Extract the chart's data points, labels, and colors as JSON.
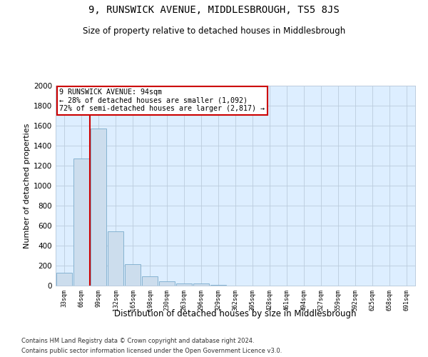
{
  "title": "9, RUNSWICK AVENUE, MIDDLESBROUGH, TS5 8JS",
  "subtitle": "Size of property relative to detached houses in Middlesbrough",
  "xlabel": "Distribution of detached houses by size in Middlesbrough",
  "ylabel": "Number of detached properties",
  "footer_line1": "Contains HM Land Registry data © Crown copyright and database right 2024.",
  "footer_line2": "Contains public sector information licensed under the Open Government Licence v3.0.",
  "bar_color": "#ccdded",
  "bar_edge_color": "#7aabcc",
  "background_color": "#ffffff",
  "plot_bg_color": "#ddeeff",
  "grid_color": "#bbccdd",
  "annotation_line1": "9 RUNSWICK AVENUE: 94sqm",
  "annotation_line2": "← 28% of detached houses are smaller (1,092)",
  "annotation_line3": "72% of semi-detached houses are larger (2,817) →",
  "annotation_box_color": "#ffffff",
  "annotation_box_edge_color": "#cc0000",
  "red_line_color": "#cc0000",
  "bin_labels": [
    "33sqm",
    "66sqm",
    "99sqm",
    "132sqm",
    "165sqm",
    "198sqm",
    "230sqm",
    "263sqm",
    "296sqm",
    "329sqm",
    "362sqm",
    "395sqm",
    "428sqm",
    "461sqm",
    "494sqm",
    "527sqm",
    "559sqm",
    "592sqm",
    "625sqm",
    "658sqm",
    "691sqm"
  ],
  "bar_values": [
    130,
    1270,
    1570,
    540,
    215,
    95,
    45,
    25,
    20,
    5,
    2,
    1,
    0,
    0,
    0,
    0,
    0,
    0,
    0,
    0,
    0
  ],
  "ylim": [
    0,
    2000
  ],
  "yticks": [
    0,
    200,
    400,
    600,
    800,
    1000,
    1200,
    1400,
    1600,
    1800,
    2000
  ],
  "highlight_bin_index": 2,
  "red_line_x": 1.5,
  "figsize": [
    6.0,
    5.0
  ],
  "dpi": 100
}
